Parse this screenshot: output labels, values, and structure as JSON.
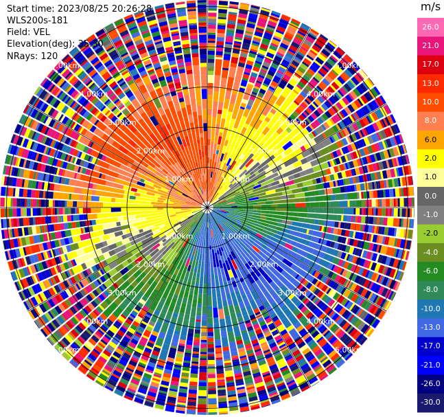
{
  "info": {
    "start_time": "Start time: 2023/08/25 20:26:28",
    "instrument": "WLS200s-181",
    "field": "Field: VEL",
    "elevation": "Elevation(deg): 35.30",
    "nrays": "NRays: 120"
  },
  "colorbar": {
    "unit": "m/s",
    "labels": [
      "26.0",
      "21.0",
      "17.0",
      "13.0",
      "10.0",
      "8.0",
      "6.0",
      "2.0",
      "1.0",
      "0.0",
      "-1.0",
      "-2.0",
      "-4.0",
      "-6.0",
      "-8.0",
      "-10.0",
      "-13.0",
      "-17.0",
      "-21.0",
      "-26.0",
      "-30.0"
    ],
    "colors": [
      "#ff69b4",
      "#e8157a",
      "#dd0011",
      "#ff2b00",
      "#ff4d00",
      "#ff7f50",
      "#ffa500",
      "#ffff00",
      "#ffff9c",
      "#666666",
      "#808080",
      "#9acd32",
      "#6b8e23",
      "#228b22",
      "#2e8b57",
      "#1f77b4",
      "#4169e1",
      "#0000cd",
      "#0000ff",
      "#000080",
      "#191970"
    ]
  },
  "chart_data": {
    "type": "ppi",
    "field": "VEL",
    "unit": "m/s",
    "nrays": 120,
    "range_rings_km": [
      1.0,
      2.0,
      3.0,
      4.0,
      5.0
    ],
    "ring_labels": [
      "1.00km",
      "2.00km",
      "3.00km",
      "4.00km",
      "5.00km"
    ],
    "max_range_km": 5.3,
    "velocity_range": [
      -30,
      26
    ],
    "azimuth_lines_deg": [
      0,
      30,
      60,
      90,
      120,
      150,
      180,
      210,
      240,
      270,
      300,
      330
    ]
  }
}
